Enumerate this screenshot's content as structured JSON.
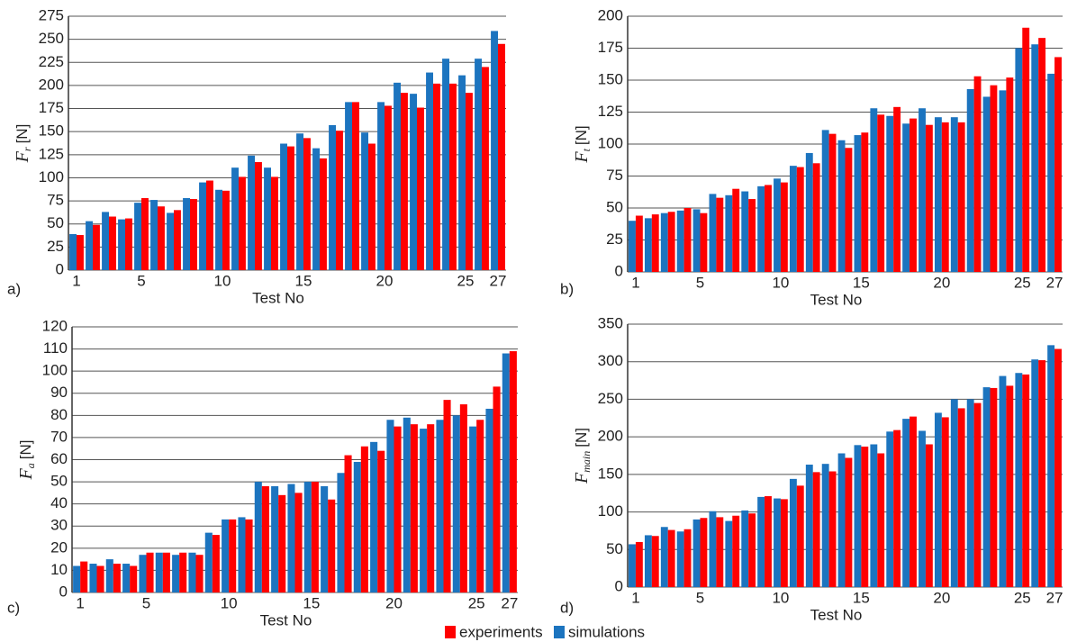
{
  "chart_data": [
    {
      "type": "bar",
      "panel_label": "a)",
      "ylabel": "F",
      "ylabel_sub": "r",
      "ylabel_unit": "[N]",
      "xlabel": "Test No",
      "categories": [
        1,
        null,
        null,
        null,
        5,
        null,
        null,
        null,
        null,
        10,
        null,
        null,
        null,
        null,
        15,
        null,
        null,
        null,
        null,
        20,
        null,
        null,
        null,
        null,
        25,
        null,
        27
      ],
      "series": [
        {
          "name": "simulations",
          "color": "#1c74bf",
          "values": [
            39,
            53,
            63,
            55,
            73,
            76,
            62,
            78,
            95,
            87,
            111,
            124,
            111,
            137,
            148,
            132,
            157,
            182,
            149,
            182,
            203,
            191,
            214,
            229,
            211,
            229,
            259
          ]
        },
        {
          "name": "experiments",
          "color": "#ff0000",
          "values": [
            38,
            49,
            58,
            56,
            78,
            69,
            65,
            77,
            97,
            86,
            101,
            117,
            101,
            134,
            143,
            121,
            151,
            182,
            137,
            178,
            192,
            176,
            202,
            202,
            192,
            220,
            245
          ]
        }
      ],
      "ylim": [
        0,
        275
      ],
      "yticks": [
        0,
        25,
        50,
        75,
        100,
        125,
        150,
        175,
        200,
        225,
        250,
        275
      ],
      "grid": true
    },
    {
      "type": "bar",
      "panel_label": "b)",
      "ylabel": "F",
      "ylabel_sub": "t",
      "ylabel_unit": "[N]",
      "xlabel": "Test No",
      "categories": [
        1,
        null,
        null,
        null,
        5,
        null,
        null,
        null,
        null,
        10,
        null,
        null,
        null,
        null,
        15,
        null,
        null,
        null,
        null,
        20,
        null,
        null,
        null,
        null,
        25,
        null,
        27
      ],
      "series": [
        {
          "name": "simulations",
          "color": "#1c74bf",
          "values": [
            40,
            42,
            46,
            48,
            49,
            61,
            60,
            63,
            67,
            73,
            83,
            93,
            111,
            103,
            107,
            128,
            122,
            116,
            128,
            121,
            121,
            143,
            137,
            142,
            175,
            178,
            155
          ]
        },
        {
          "name": "experiments",
          "color": "#ff0000",
          "values": [
            44,
            45,
            47,
            50,
            46,
            58,
            65,
            57,
            68,
            70,
            82,
            85,
            108,
            97,
            109,
            123,
            129,
            120,
            115,
            117,
            117,
            153,
            146,
            152,
            191,
            183,
            168
          ]
        }
      ],
      "ylim": [
        0,
        200
      ],
      "yticks": [
        0,
        25,
        50,
        75,
        100,
        125,
        150,
        175,
        200
      ],
      "grid": true
    },
    {
      "type": "bar",
      "panel_label": "c)",
      "ylabel": "F",
      "ylabel_sub": "a",
      "ylabel_unit": "[N]",
      "xlabel": "Test No",
      "categories": [
        1,
        null,
        null,
        null,
        5,
        null,
        null,
        null,
        null,
        10,
        null,
        null,
        null,
        null,
        15,
        null,
        null,
        null,
        null,
        20,
        null,
        null,
        null,
        null,
        25,
        null,
        27
      ],
      "series": [
        {
          "name": "simulations",
          "color": "#1c74bf",
          "values": [
            12,
            13,
            15,
            13,
            17,
            18,
            17,
            18,
            27,
            33,
            34,
            50,
            48,
            49,
            50,
            48,
            54,
            59,
            68,
            78,
            79,
            74,
            78,
            80,
            75,
            83,
            108
          ]
        },
        {
          "name": "experiments",
          "color": "#ff0000",
          "values": [
            14,
            12,
            13,
            12,
            18,
            18,
            18,
            17,
            26,
            33,
            33,
            48,
            44,
            45,
            50,
            42,
            62,
            66,
            64,
            75,
            76,
            76,
            87,
            85,
            78,
            93,
            109
          ]
        }
      ],
      "ylim": [
        0,
        120
      ],
      "yticks": [
        0,
        10,
        20,
        30,
        40,
        50,
        60,
        70,
        80,
        90,
        100,
        110,
        120
      ],
      "grid": true
    },
    {
      "type": "bar",
      "panel_label": "d)",
      "ylabel": "F",
      "ylabel_sub": "main",
      "ylabel_unit": "[N]",
      "xlabel": "Test No",
      "categories": [
        1,
        null,
        null,
        null,
        5,
        null,
        null,
        null,
        null,
        10,
        null,
        null,
        null,
        null,
        15,
        null,
        null,
        null,
        null,
        20,
        null,
        null,
        null,
        null,
        25,
        null,
        27
      ],
      "series": [
        {
          "name": "simulations",
          "color": "#1c74bf",
          "values": [
            57,
            69,
            80,
            74,
            90,
            101,
            88,
            102,
            120,
            118,
            144,
            163,
            164,
            178,
            189,
            190,
            207,
            224,
            208,
            232,
            250,
            250,
            266,
            281,
            285,
            303,
            322
          ]
        },
        {
          "name": "experiments",
          "color": "#ff0000",
          "values": [
            60,
            68,
            76,
            77,
            92,
            93,
            95,
            98,
            121,
            117,
            135,
            153,
            154,
            172,
            187,
            178,
            209,
            227,
            190,
            226,
            238,
            245,
            265,
            268,
            283,
            302,
            317
          ]
        }
      ],
      "ylim": [
        0,
        350
      ],
      "yticks": [
        0,
        50,
        100,
        150,
        200,
        250,
        300,
        350
      ],
      "grid": true
    }
  ]
}
